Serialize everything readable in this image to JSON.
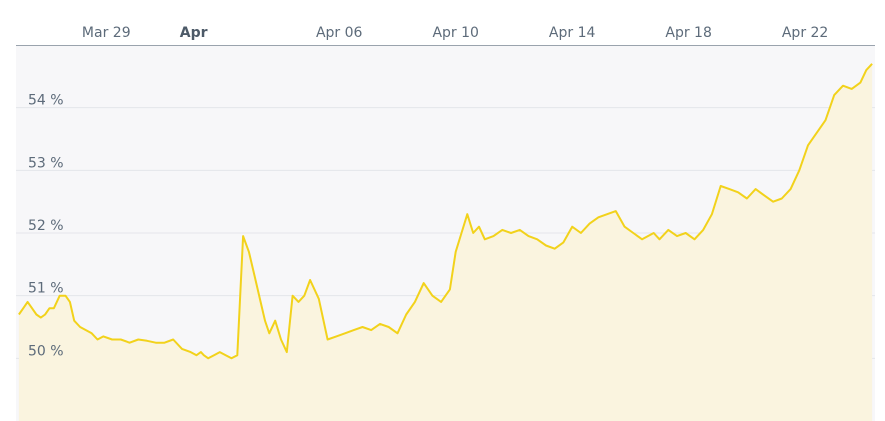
{
  "chart_data": {
    "type": "area",
    "title": "",
    "xlabel": "",
    "ylabel": "",
    "x_ticks": [
      {
        "label": "Mar 29",
        "day": 3,
        "bold": false
      },
      {
        "label": "Apr",
        "day": 6,
        "bold": true
      },
      {
        "label": "Apr 06",
        "day": 11,
        "bold": false
      },
      {
        "label": "Apr 10",
        "day": 15,
        "bold": false
      },
      {
        "label": "Apr 14",
        "day": 19,
        "bold": false
      },
      {
        "label": "Apr 18",
        "day": 23,
        "bold": false
      },
      {
        "label": "Apr 22",
        "day": 27,
        "bold": false
      }
    ],
    "y_ticks": [
      {
        "label": "50 %",
        "value": 50
      },
      {
        "label": "51 %",
        "value": 51
      },
      {
        "label": "52 %",
        "value": 52
      },
      {
        "label": "53 %",
        "value": 53
      },
      {
        "label": "54 %",
        "value": 54
      }
    ],
    "xlim": [
      -0.1,
      29.4
    ],
    "ylim": [
      49.0,
      55.0
    ],
    "grid": true,
    "colors": {
      "line": "#f2d21b",
      "fill": "#faf4df",
      "plot_bg": "#f7f7f9",
      "grid": "#e4e6ea"
    },
    "series": [
      {
        "x": [
          0.0,
          0.15,
          0.3,
          0.45,
          0.6,
          0.75,
          0.9,
          1.05,
          1.2,
          1.4,
          1.6,
          1.75,
          1.9,
          2.1,
          2.3,
          2.5,
          2.7,
          2.9,
          3.2,
          3.5,
          3.8,
          4.1,
          4.4,
          4.7,
          5.0,
          5.3,
          5.6,
          5.9,
          6.1,
          6.25,
          6.35,
          6.5,
          6.7,
          6.9,
          7.1,
          7.3,
          7.5,
          7.7,
          7.9,
          8.1,
          8.3,
          8.45,
          8.6,
          8.8,
          9.0,
          9.2,
          9.4,
          9.6,
          9.8,
          10.0,
          10.3,
          10.6,
          10.9,
          11.2,
          11.5,
          11.8,
          12.1,
          12.4,
          12.7,
          13.0,
          13.3,
          13.6,
          13.9,
          14.2,
          14.5,
          14.8,
          15.0,
          15.2,
          15.4,
          15.6,
          15.8,
          16.0,
          16.3,
          16.6,
          16.9,
          17.2,
          17.5,
          17.8,
          18.1,
          18.4,
          18.7,
          19.0,
          19.3,
          19.6,
          19.9,
          20.2,
          20.5,
          20.8,
          21.1,
          21.4,
          21.6,
          21.8,
          22.0,
          22.3,
          22.6,
          22.9,
          23.2,
          23.5,
          23.8,
          24.1,
          24.4,
          24.7,
          25.0,
          25.3,
          25.6,
          25.9,
          26.2,
          26.5,
          26.8,
          27.1,
          27.4,
          27.7,
          28.0,
          28.3,
          28.6,
          28.9,
          29.1,
          29.3
        ],
        "y": [
          50.7,
          50.8,
          50.9,
          50.8,
          50.7,
          50.65,
          50.7,
          50.8,
          50.8,
          51.0,
          51.0,
          50.9,
          50.6,
          50.5,
          50.45,
          50.4,
          50.3,
          50.35,
          50.3,
          50.3,
          50.25,
          50.3,
          50.28,
          50.25,
          50.25,
          50.3,
          50.15,
          50.1,
          50.05,
          50.1,
          50.05,
          50.0,
          50.05,
          50.1,
          50.05,
          50.0,
          50.05,
          51.95,
          51.7,
          51.3,
          50.9,
          50.6,
          50.4,
          50.6,
          50.3,
          50.1,
          51.0,
          50.9,
          51.0,
          51.25,
          50.95,
          50.3,
          50.35,
          50.4,
          50.45,
          50.5,
          50.45,
          50.55,
          50.5,
          50.4,
          50.7,
          50.9,
          51.2,
          51.0,
          50.9,
          51.1,
          51.7,
          52.0,
          52.3,
          52.0,
          52.1,
          51.9,
          51.95,
          52.05,
          52.0,
          52.05,
          51.95,
          51.9,
          51.8,
          51.75,
          51.85,
          52.1,
          52.0,
          52.15,
          52.25,
          52.3,
          52.35,
          52.1,
          52.0,
          51.9,
          51.95,
          52.0,
          51.9,
          52.05,
          51.95,
          52.0,
          51.9,
          52.05,
          52.3,
          52.75,
          52.7,
          52.65,
          52.55,
          52.7,
          52.6,
          52.5,
          52.55,
          52.7,
          53.0,
          53.4,
          53.6,
          53.8,
          54.2,
          54.35,
          54.3,
          54.4,
          54.6,
          54.7
        ]
      }
    ]
  }
}
